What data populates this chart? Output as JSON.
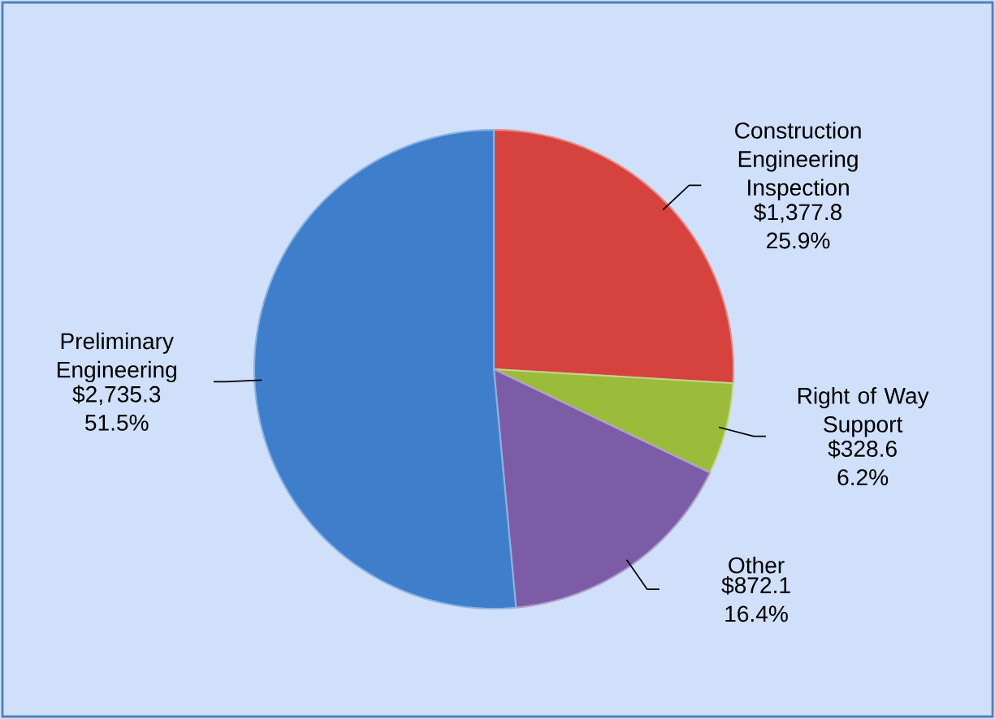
{
  "chart_data": {
    "type": "pie",
    "categories": [
      "Construction Engineering Inspection",
      "Right of Way Support",
      "Other",
      "Preliminary Engineering"
    ],
    "values": [
      1377.8,
      328.6,
      872.1,
      2735.3
    ],
    "colors": [
      "#d6433f",
      "#9bbb3b",
      "#7c5ca6",
      "#3f7ecb"
    ],
    "value_labels": [
      "$1,377.8 25.9%",
      "$328.6 6.2%",
      "$872.1 16.4%",
      "$2,735.3 51.5%"
    ]
  }
}
